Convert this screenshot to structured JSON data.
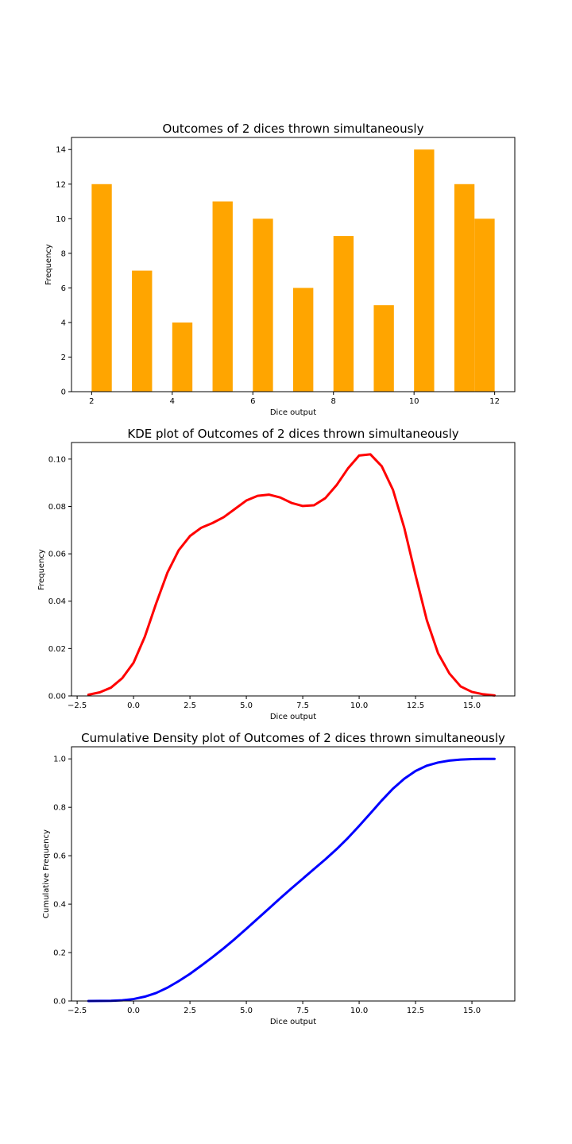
{
  "chart_data": [
    {
      "type": "bar",
      "title": "Outcomes of 2 dices thrown simultaneously",
      "xlabel": "Dice output",
      "ylabel": "Frequency",
      "xlim": [
        1.5,
        12.5
      ],
      "ylim": [
        0,
        14.7
      ],
      "xticks": [
        2,
        4,
        6,
        8,
        10,
        12
      ],
      "yticks": [
        0,
        2,
        4,
        6,
        8,
        10,
        12,
        14
      ],
      "bar_color": "#ffa500",
      "bins": [
        {
          "start": 2.0,
          "end": 2.5,
          "value": 12
        },
        {
          "start": 3.0,
          "end": 3.5,
          "value": 7
        },
        {
          "start": 4.0,
          "end": 4.5,
          "value": 4
        },
        {
          "start": 5.0,
          "end": 5.5,
          "value": 11
        },
        {
          "start": 6.0,
          "end": 6.5,
          "value": 10
        },
        {
          "start": 7.0,
          "end": 7.5,
          "value": 6
        },
        {
          "start": 8.0,
          "end": 8.5,
          "value": 9
        },
        {
          "start": 9.0,
          "end": 9.5,
          "value": 5
        },
        {
          "start": 10.0,
          "end": 10.5,
          "value": 14
        },
        {
          "start": 11.0,
          "end": 11.5,
          "value": 12
        },
        {
          "start": 11.5,
          "end": 12.0,
          "value": 10
        }
      ]
    },
    {
      "type": "line",
      "title": "KDE plot of Outcomes of 2 dices thrown simultaneously",
      "xlabel": "Dice output",
      "ylabel": "Frequency",
      "xlim": [
        -2.75,
        16.9
      ],
      "ylim": [
        0,
        0.107
      ],
      "xticks": [
        -2.5,
        0.0,
        2.5,
        5.0,
        7.5,
        10.0,
        12.5,
        15.0
      ],
      "yticks": [
        0.0,
        0.02,
        0.04,
        0.06,
        0.08,
        0.1
      ],
      "line_color": "#ff0000",
      "x": [
        -2.0,
        -1.5,
        -1.0,
        -0.5,
        0.0,
        0.5,
        1.0,
        1.5,
        2.0,
        2.5,
        3.0,
        3.5,
        4.0,
        4.5,
        5.0,
        5.5,
        6.0,
        6.5,
        7.0,
        7.5,
        8.0,
        8.5,
        9.0,
        9.5,
        10.0,
        10.5,
        11.0,
        11.5,
        12.0,
        12.5,
        13.0,
        13.5,
        14.0,
        14.5,
        15.0,
        15.5,
        16.0
      ],
      "y": [
        0.0005,
        0.0015,
        0.0035,
        0.0075,
        0.014,
        0.025,
        0.039,
        0.052,
        0.0615,
        0.0675,
        0.071,
        0.073,
        0.0755,
        0.079,
        0.0825,
        0.0845,
        0.085,
        0.0838,
        0.0815,
        0.0802,
        0.0805,
        0.0835,
        0.089,
        0.096,
        0.1015,
        0.102,
        0.097,
        0.087,
        0.071,
        0.051,
        0.032,
        0.018,
        0.0095,
        0.004,
        0.0017,
        0.0007,
        0.0002
      ]
    },
    {
      "type": "line",
      "title": "Cumulative Density plot of Outcomes of 2 dices thrown simultaneously",
      "xlabel": "Dice output",
      "ylabel": "Cumulative Frequency",
      "xlim": [
        -2.75,
        16.9
      ],
      "ylim": [
        0,
        1.05
      ],
      "xticks": [
        -2.5,
        0.0,
        2.5,
        5.0,
        7.5,
        10.0,
        12.5,
        15.0
      ],
      "yticks": [
        0.0,
        0.2,
        0.4,
        0.6,
        0.8,
        1.0
      ],
      "line_color": "#0000ff",
      "x": [
        -2.0,
        -1.5,
        -1.0,
        -0.5,
        0.0,
        0.5,
        1.0,
        1.5,
        2.0,
        2.5,
        3.0,
        3.5,
        4.0,
        4.5,
        5.0,
        5.5,
        6.0,
        6.5,
        7.0,
        7.5,
        8.0,
        8.5,
        9.0,
        9.5,
        10.0,
        10.5,
        11.0,
        11.5,
        12.0,
        12.5,
        13.0,
        13.5,
        14.0,
        14.5,
        15.0,
        15.5,
        16.0
      ],
      "y": [
        0.0,
        0.0005,
        0.001,
        0.003,
        0.008,
        0.018,
        0.033,
        0.055,
        0.082,
        0.112,
        0.146,
        0.181,
        0.218,
        0.257,
        0.298,
        0.34,
        0.382,
        0.424,
        0.465,
        0.505,
        0.545,
        0.585,
        0.627,
        0.673,
        0.723,
        0.775,
        0.828,
        0.877,
        0.918,
        0.95,
        0.972,
        0.985,
        0.993,
        0.997,
        0.999,
        1.0,
        1.0
      ]
    }
  ]
}
